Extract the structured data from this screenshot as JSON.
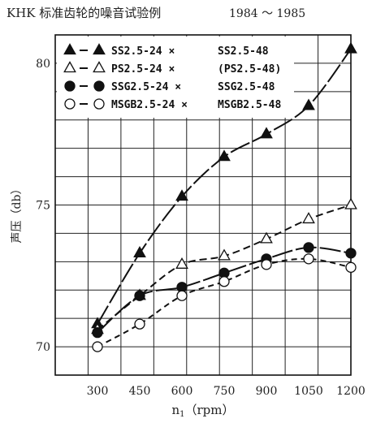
{
  "chart_data": {
    "type": "line",
    "title": "KHK 标准齿轮的噪音试验例",
    "period": "1984 ～ 1985",
    "xlabel_main": "n",
    "xlabel_sub": "1",
    "xlabel_unit": "（rpm）",
    "ylabel": "声压（db）",
    "x": [
      300,
      450,
      600,
      750,
      900,
      1050,
      1200
    ],
    "xlim": [
      300,
      1200
    ],
    "ylim": [
      69,
      81
    ],
    "yticks": [
      70,
      75,
      80
    ],
    "grid": true,
    "legend_position": "top-left",
    "series": [
      {
        "name": "SS2.5-24 × SS2.5-48",
        "legend_left": "SS2.5-24 ×",
        "legend_right": "SS2.5-48",
        "marker": "filled-triangle",
        "line": "long-dash",
        "values": [
          70.8,
          73.3,
          75.3,
          76.7,
          77.5,
          78.5,
          80.5
        ]
      },
      {
        "name": "PS2.5-24 × (PS2.5-48)",
        "legend_left": "PS2.5-24 ×",
        "legend_right": "(PS2.5-48)",
        "marker": "open-triangle",
        "line": "dash",
        "values": [
          70.6,
          71.8,
          72.9,
          73.2,
          73.8,
          74.5,
          75.0
        ]
      },
      {
        "name": "SSG2.5-24 × SSG2.5-48",
        "legend_left": "SSG2.5-24 ×",
        "legend_right": "SSG2.5-48",
        "marker": "filled-circle",
        "line": "long-dash",
        "values": [
          70.5,
          71.8,
          72.1,
          72.6,
          73.1,
          73.5,
          73.3
        ]
      },
      {
        "name": "MSGB2.5-24 × MSGB2.5-48",
        "legend_left": "MSGB2.5-24 ×",
        "legend_right": "MSGB2.5-48",
        "marker": "open-circle",
        "line": "short-dash",
        "values": [
          70.0,
          70.8,
          71.8,
          72.3,
          72.9,
          73.1,
          72.8
        ]
      }
    ]
  }
}
